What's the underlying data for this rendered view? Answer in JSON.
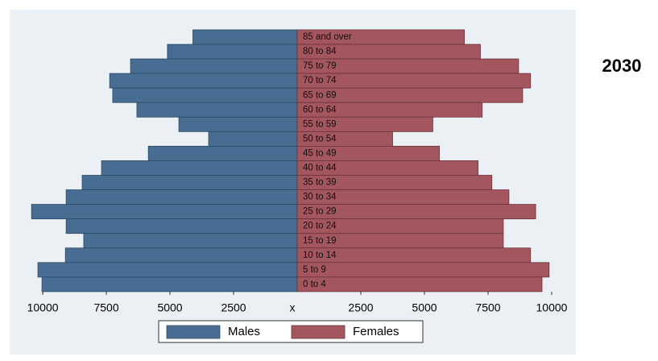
{
  "chart_data": {
    "type": "pyramid",
    "title": "2030",
    "categories": [
      "85 and over",
      "80 to 84",
      "75 to 79",
      "70 to 74",
      "65 to 69",
      "60 to 64",
      "55 to 59",
      "50 to 54",
      "45 to 49",
      "40 to 44",
      "35 to 39",
      "30 to 34",
      "25 to 29",
      "20 to 24",
      "15 to 19",
      "10 to 14",
      "5 to 9",
      "0 to 4"
    ],
    "series": [
      {
        "name": "Males",
        "color": "#476d92",
        "side": "left",
        "values": [
          4100,
          5100,
          6550,
          7370,
          7250,
          6300,
          4650,
          3480,
          5850,
          7690,
          8450,
          9080,
          10440,
          9080,
          8390,
          9110,
          10190,
          10030
        ]
      },
      {
        "name": "Females",
        "color": "#a3565e",
        "side": "right",
        "values": [
          6570,
          7200,
          8700,
          9170,
          8860,
          7270,
          5330,
          3750,
          5590,
          7110,
          7650,
          8320,
          9370,
          8100,
          8100,
          9170,
          9900,
          9620
        ]
      }
    ],
    "xlim_left": [
      0,
      11300
    ],
    "xlim_right": [
      0,
      10950
    ],
    "xticks_left": [
      10000,
      7500,
      5000,
      2500
    ],
    "xticks_right": [
      2500,
      5000,
      7500,
      10000
    ],
    "center_label": "x"
  }
}
